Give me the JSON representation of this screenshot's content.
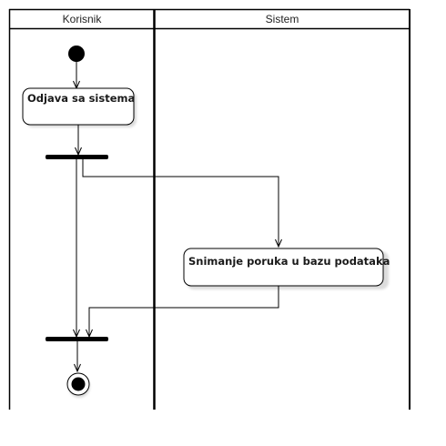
{
  "swimlanes": [
    {
      "id": "korisnik",
      "title": "Korisnik"
    },
    {
      "id": "sistem",
      "title": "Sistem"
    }
  ],
  "actions": [
    {
      "id": "odjava",
      "label": "Odjava sa sistema",
      "lane": "korisnik"
    },
    {
      "id": "snimanje",
      "label": "Snimanje poruka u bazu podataka",
      "lane": "sistem"
    }
  ],
  "nodes": [
    {
      "id": "start",
      "kind": "initial-node"
    },
    {
      "id": "fork",
      "kind": "fork-bar"
    },
    {
      "id": "join",
      "kind": "join-bar"
    },
    {
      "id": "end",
      "kind": "final-node"
    }
  ],
  "flows": [
    {
      "from": "start",
      "to": "odjava"
    },
    {
      "from": "odjava",
      "to": "fork"
    },
    {
      "from": "fork",
      "to": "snimanje"
    },
    {
      "from": "fork",
      "to": "join"
    },
    {
      "from": "snimanje",
      "to": "join"
    },
    {
      "from": "join",
      "to": "end"
    }
  ],
  "colors": {
    "line": "#000000",
    "node_fill": "#ffffff",
    "shadow": "#e6e6e6"
  }
}
